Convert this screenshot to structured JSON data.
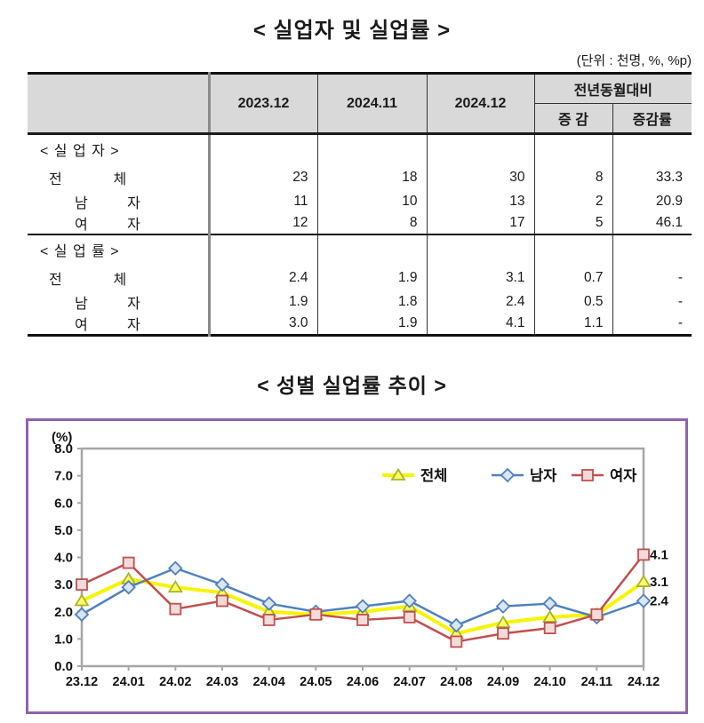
{
  "page": {
    "title": "< 실업자 및 실업률 >",
    "unit_note": "(단위 : 천명, %, %p)",
    "chart_title": "< 성별 실업률 추이 >"
  },
  "table": {
    "col_headers": [
      "2023.12",
      "2024.11",
      "2024.12"
    ],
    "yoy_header": "전년동월대비",
    "yoy_sub_headers": [
      "증  감",
      "증감률"
    ],
    "rows": [
      {
        "kind": "section",
        "label": "< 실 업 자 >",
        "values": [
          "",
          "",
          "",
          "",
          ""
        ]
      },
      {
        "kind": "total",
        "label": "전             체",
        "values": [
          "23",
          "18",
          "30",
          "8",
          "33.3"
        ]
      },
      {
        "kind": "sub",
        "label": "남          자",
        "values": [
          "11",
          "10",
          "13",
          "2",
          "20.9"
        ]
      },
      {
        "kind": "sub",
        "label": "여          자",
        "values": [
          "12",
          "8",
          "17",
          "5",
          "46.1"
        ]
      },
      {
        "kind": "section rate-break",
        "label": "< 실 업 률 >",
        "values": [
          "",
          "",
          "",
          "",
          ""
        ]
      },
      {
        "kind": "total",
        "label": "전             체",
        "values": [
          "2.4",
          "1.9",
          "3.1",
          "0.7",
          "-"
        ]
      },
      {
        "kind": "sub",
        "label": "남          자",
        "values": [
          "1.9",
          "1.8",
          "2.4",
          "0.5",
          "-"
        ]
      },
      {
        "kind": "sub",
        "label": "여          자",
        "values": [
          "3.0",
          "1.9",
          "4.1",
          "1.1",
          "-"
        ]
      }
    ]
  },
  "chart_data": {
    "type": "line",
    "title": "< 성별 실업률 추이 >",
    "unit_label": "(%)",
    "categories": [
      "23.12",
      "24.01",
      "24.02",
      "24.03",
      "24.04",
      "24.05",
      "24.06",
      "24.07",
      "24.08",
      "24.09",
      "24.10",
      "24.11",
      "24.12"
    ],
    "series": [
      {
        "key": "total",
        "name": "전체",
        "marker": "triangle",
        "color": "#f5f500",
        "marker_fill": "#ffff66",
        "marker_stroke": "#a9b427",
        "line_width": 4,
        "values": [
          2.4,
          3.2,
          2.9,
          2.7,
          2.0,
          1.9,
          2.0,
          2.2,
          1.2,
          1.6,
          1.8,
          1.9,
          3.1
        ],
        "end_label": "3.1"
      },
      {
        "key": "male",
        "name": "남자",
        "marker": "diamond",
        "color": "#4f81bd",
        "marker_fill": "#dbe5f1",
        "marker_stroke": "#4f81bd",
        "line_width": 2.5,
        "values": [
          1.9,
          2.9,
          3.6,
          3.0,
          2.3,
          2.0,
          2.2,
          2.4,
          1.5,
          2.2,
          2.3,
          1.8,
          2.4
        ],
        "end_label": "2.4"
      },
      {
        "key": "female",
        "name": "여자",
        "marker": "square",
        "color": "#c0504d",
        "marker_fill": "#f2dcdb",
        "marker_stroke": "#c0504d",
        "line_width": 2.5,
        "values": [
          3.0,
          3.8,
          2.1,
          2.4,
          1.7,
          1.9,
          1.7,
          1.8,
          0.9,
          1.2,
          1.4,
          1.9,
          4.1
        ],
        "end_label": "4.1"
      }
    ],
    "ylim": [
      0.0,
      8.0
    ],
    "ytick_step": 1.0,
    "ytick_labels": [
      "0.0",
      "1.0",
      "2.0",
      "3.0",
      "4.0",
      "5.0",
      "6.0",
      "7.0",
      "8.0"
    ],
    "grid": false,
    "legend_position": "top-right-inside",
    "colors": {
      "chart_border": "#8f63ac",
      "plot_border": "#a6a6a6",
      "tick_text": "#111111"
    }
  }
}
